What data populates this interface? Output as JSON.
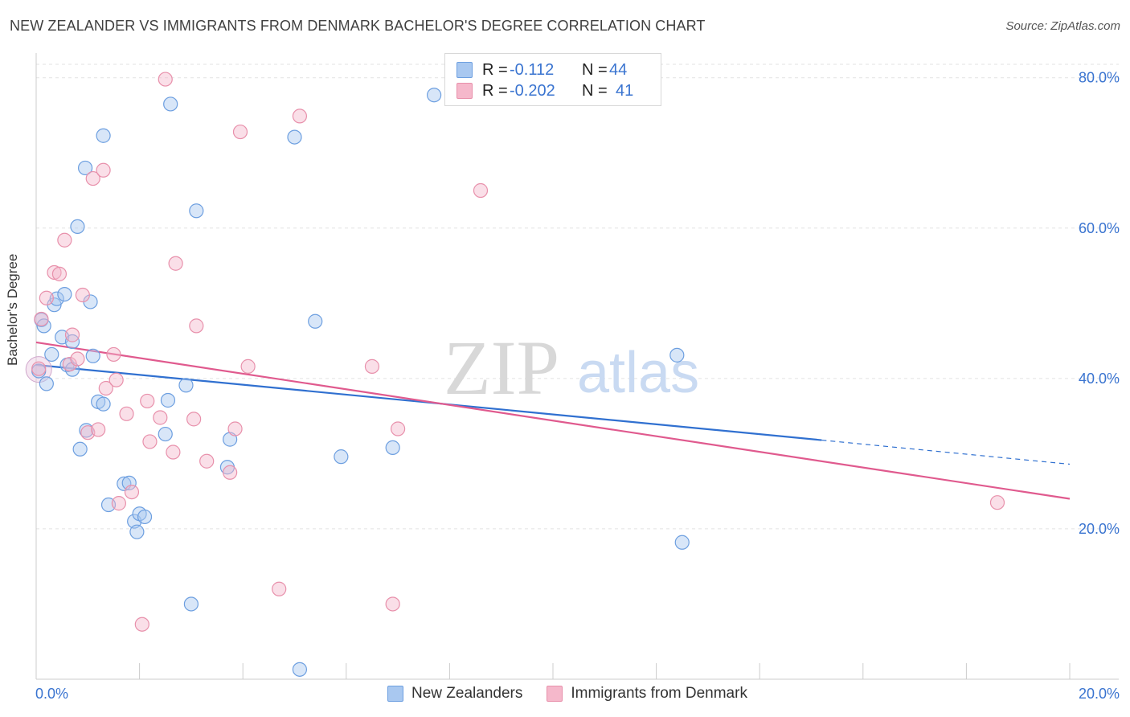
{
  "header": {
    "title": "NEW ZEALANDER VS IMMIGRANTS FROM DENMARK BACHELOR'S DEGREE CORRELATION CHART",
    "source": "Source: ZipAtlas.com"
  },
  "watermark": {
    "zip": "ZIP",
    "atlas": "atlas"
  },
  "stats_legend": {
    "rows": [
      {
        "r_label": "R =",
        "r_value": "-0.112",
        "n_label": "N =",
        "n_value": "44",
        "color": "#a9c8f0"
      },
      {
        "r_label": "R =",
        "r_value": "-0.202",
        "n_label": "N =",
        "n_value": "41",
        "color": "#f5b8cb"
      }
    ]
  },
  "series_legend": {
    "items": [
      {
        "label": "New Zealanders",
        "color": "#a9c8f0"
      },
      {
        "label": "Immigrants from Denmark",
        "color": "#f5b8cb"
      }
    ]
  },
  "chart_data": {
    "type": "scatter",
    "title": "NEW ZEALANDER VS IMMIGRANTS FROM DENMARK BACHELOR'S DEGREE CORRELATION CHART",
    "xlabel": "",
    "ylabel": "Bachelor's Degree",
    "xlim": [
      0,
      20
    ],
    "ylim": [
      0,
      82
    ],
    "x_tick_labels": [
      {
        "value": 0,
        "label": "0.0%"
      },
      {
        "value": 20,
        "label": "20.0%"
      }
    ],
    "y_tick_labels": [
      {
        "value": 20,
        "label": "20.0%"
      },
      {
        "value": 40,
        "label": "40.0%"
      },
      {
        "value": 60,
        "label": "60.0%"
      },
      {
        "value": 80,
        "label": "80.0%"
      }
    ],
    "x_minor_ticks": [
      0,
      2,
      4,
      6,
      8,
      10,
      12,
      14,
      16,
      18,
      20
    ],
    "grid": true,
    "series": [
      {
        "name": "New Zealanders",
        "color": "#a9c8f0",
        "stroke": "#6d9fe0",
        "line_color": "#3070d0",
        "trend": {
          "x0": 0,
          "y0": 41.8,
          "x1": 15.2,
          "y1": 31.8,
          "dash_to_x": 20,
          "dash_to_y": 28.6
        },
        "points": [
          [
            0.05,
            41.0
          ],
          [
            0.1,
            47.8
          ],
          [
            0.15,
            47.0
          ],
          [
            0.2,
            39.3
          ],
          [
            0.3,
            43.2
          ],
          [
            0.35,
            49.8
          ],
          [
            0.4,
            50.6
          ],
          [
            0.5,
            45.5
          ],
          [
            0.55,
            51.2
          ],
          [
            0.6,
            41.8
          ],
          [
            0.7,
            44.9
          ],
          [
            0.7,
            41.2
          ],
          [
            0.8,
            60.2
          ],
          [
            0.85,
            30.6
          ],
          [
            0.95,
            68.0
          ],
          [
            0.97,
            33.1
          ],
          [
            1.05,
            50.2
          ],
          [
            1.1,
            43.0
          ],
          [
            1.2,
            36.9
          ],
          [
            1.3,
            36.6
          ],
          [
            1.3,
            72.3
          ],
          [
            1.4,
            23.2
          ],
          [
            1.7,
            26.0
          ],
          [
            1.8,
            26.1
          ],
          [
            1.9,
            21.0
          ],
          [
            1.95,
            19.6
          ],
          [
            2.0,
            22.0
          ],
          [
            2.1,
            21.6
          ],
          [
            2.5,
            32.6
          ],
          [
            2.55,
            37.1
          ],
          [
            2.6,
            76.5
          ],
          [
            2.9,
            39.1
          ],
          [
            3.0,
            10.0
          ],
          [
            3.1,
            62.3
          ],
          [
            3.7,
            28.2
          ],
          [
            3.75,
            31.9
          ],
          [
            5.0,
            72.1
          ],
          [
            5.1,
            1.3
          ],
          [
            5.4,
            47.6
          ],
          [
            5.9,
            29.6
          ],
          [
            6.9,
            30.8
          ],
          [
            7.7,
            77.7
          ],
          [
            12.4,
            43.1
          ],
          [
            12.5,
            18.2
          ]
        ]
      },
      {
        "name": "Immigrants from Denmark",
        "color": "#f5b8cb",
        "stroke": "#e890ab",
        "line_color": "#e05a8e",
        "trend": {
          "x0": 0,
          "y0": 44.8,
          "x1": 20,
          "y1": 24.0
        },
        "points": [
          [
            0.05,
            41.3
          ],
          [
            0.1,
            47.9
          ],
          [
            0.2,
            50.7
          ],
          [
            0.35,
            54.1
          ],
          [
            0.45,
            53.9
          ],
          [
            0.55,
            58.4
          ],
          [
            0.65,
            41.9
          ],
          [
            0.7,
            45.8
          ],
          [
            0.8,
            42.6
          ],
          [
            0.9,
            51.1
          ],
          [
            1.0,
            32.8
          ],
          [
            1.1,
            66.6
          ],
          [
            1.2,
            33.2
          ],
          [
            1.3,
            67.7
          ],
          [
            1.35,
            38.7
          ],
          [
            1.5,
            43.2
          ],
          [
            1.55,
            39.8
          ],
          [
            1.6,
            23.4
          ],
          [
            1.75,
            35.3
          ],
          [
            1.85,
            24.9
          ],
          [
            2.05,
            7.3
          ],
          [
            2.15,
            37.0
          ],
          [
            2.2,
            31.6
          ],
          [
            2.4,
            34.8
          ],
          [
            2.5,
            79.8
          ],
          [
            2.65,
            30.2
          ],
          [
            2.7,
            55.3
          ],
          [
            3.05,
            34.6
          ],
          [
            3.1,
            47.0
          ],
          [
            3.3,
            29.0
          ],
          [
            3.75,
            27.5
          ],
          [
            3.85,
            33.3
          ],
          [
            3.95,
            72.8
          ],
          [
            4.1,
            41.6
          ],
          [
            4.7,
            12.0
          ],
          [
            5.1,
            74.9
          ],
          [
            6.5,
            41.6
          ],
          [
            6.9,
            10.0
          ],
          [
            7.0,
            33.3
          ],
          [
            8.6,
            65.0
          ],
          [
            18.6,
            23.5
          ]
        ]
      }
    ]
  }
}
